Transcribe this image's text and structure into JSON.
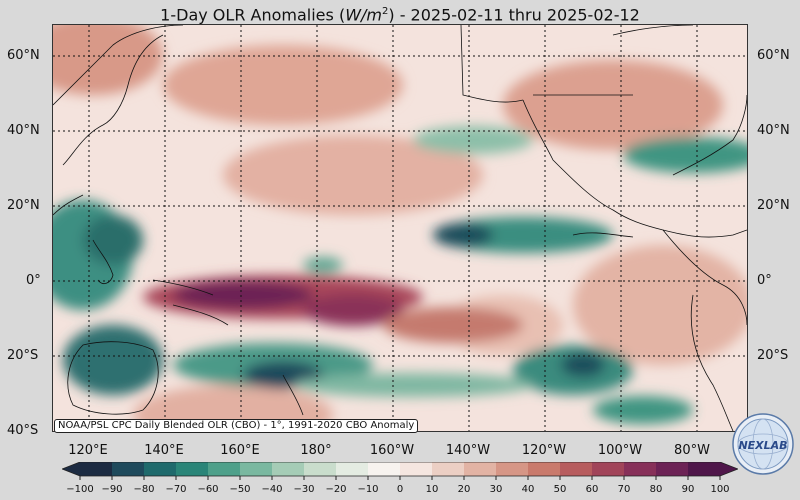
{
  "title": {
    "prefix": "1-Day OLR Anomalies (",
    "unit_base": "W/m",
    "unit_exp": "2",
    "suffix": ") - 2025-02-11 thru 2025-02-12"
  },
  "lat_labels": [
    "60°N",
    "40°N",
    "20°N",
    "0°",
    "20°S",
    "40°S"
  ],
  "lon_labels": [
    "120°E",
    "140°E",
    "160°E",
    "180°",
    "160°W",
    "140°W",
    "120°W",
    "100°W",
    "80°W"
  ],
  "credit": "NOAA/PSL CPC Daily Blended OLR (CBO) - 1°, 1991-2020 CBO Anomaly",
  "logo_text": "NEXLAB",
  "colorbar": {
    "ticks": [
      "−100",
      "−90",
      "−80",
      "−70",
      "−60",
      "−50",
      "−40",
      "−30",
      "−20",
      "−10",
      "0",
      "10",
      "20",
      "30",
      "40",
      "50",
      "60",
      "70",
      "80",
      "90",
      "100"
    ],
    "colors": [
      "#1c2b42",
      "#1f4a5c",
      "#1f6a6c",
      "#2a8578",
      "#4ea08a",
      "#7ab8a0",
      "#a5ccb6",
      "#c9ddcc",
      "#e4ece2",
      "#f7f3ef",
      "#f5e6e0",
      "#eccfc4",
      "#e2b3a4",
      "#d69686",
      "#c97a6c",
      "#b75c5e",
      "#a14459",
      "#873059",
      "#6c2255",
      "#4f164a"
    ]
  },
  "palette": {
    "ocean_base": "#f4e3dd",
    "coast": "#111111",
    "grid": "#111111"
  }
}
